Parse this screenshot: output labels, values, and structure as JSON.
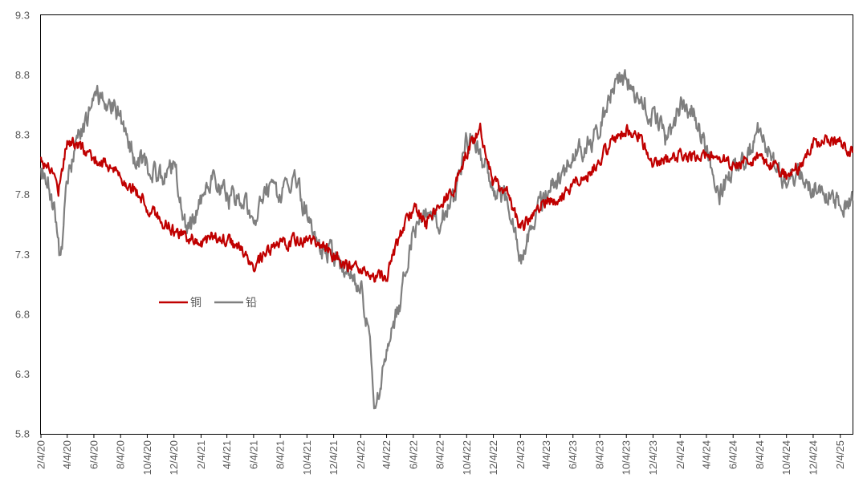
{
  "chart_data": {
    "type": "line",
    "title": "",
    "xlabel": "",
    "ylabel": "",
    "ylim": [
      5.8,
      9.3
    ],
    "yticks": [
      "5.8",
      "6.3",
      "6.8",
      "7.3",
      "7.8",
      "8.3",
      "8.8",
      "9.3"
    ],
    "xlim": [
      "2020-02-04",
      "2025-03-04"
    ],
    "xticks": [
      {
        "date": "2020-02-04",
        "label": "2/4/20"
      },
      {
        "date": "2020-04-04",
        "label": "4/4/20"
      },
      {
        "date": "2020-06-04",
        "label": "6/4/20"
      },
      {
        "date": "2020-08-04",
        "label": "8/4/20"
      },
      {
        "date": "2020-10-04",
        "label": "10/4/20"
      },
      {
        "date": "2020-12-04",
        "label": "12/4/20"
      },
      {
        "date": "2021-02-04",
        "label": "2/4/21"
      },
      {
        "date": "2021-04-04",
        "label": "4/4/21"
      },
      {
        "date": "2021-06-04",
        "label": "6/4/21"
      },
      {
        "date": "2021-08-04",
        "label": "8/4/21"
      },
      {
        "date": "2021-10-04",
        "label": "10/4/21"
      },
      {
        "date": "2021-12-04",
        "label": "12/4/21"
      },
      {
        "date": "2022-02-04",
        "label": "2/4/22"
      },
      {
        "date": "2022-04-04",
        "label": "4/4/22"
      },
      {
        "date": "2022-06-04",
        "label": "6/4/22"
      },
      {
        "date": "2022-08-04",
        "label": "8/4/22"
      },
      {
        "date": "2022-10-04",
        "label": "10/4/22"
      },
      {
        "date": "2022-12-04",
        "label": "12/4/22"
      },
      {
        "date": "2023-02-04",
        "label": "2/4/23"
      },
      {
        "date": "2023-04-04",
        "label": "4/4/23"
      },
      {
        "date": "2023-06-04",
        "label": "6/4/23"
      },
      {
        "date": "2023-08-04",
        "label": "8/4/23"
      },
      {
        "date": "2023-10-04",
        "label": "10/4/23"
      },
      {
        "date": "2023-12-04",
        "label": "12/4/23"
      },
      {
        "date": "2024-02-04",
        "label": "2/4/24"
      },
      {
        "date": "2024-04-04",
        "label": "4/4/24"
      },
      {
        "date": "2024-06-04",
        "label": "6/4/24"
      },
      {
        "date": "2024-08-04",
        "label": "8/4/24"
      },
      {
        "date": "2024-10-04",
        "label": "10/4/24"
      },
      {
        "date": "2024-12-04",
        "label": "12/4/24"
      },
      {
        "date": "2025-02-04",
        "label": "2/4/25"
      }
    ],
    "grid": false,
    "legend_position": "left-center inside plot",
    "series": [
      {
        "name": "铜",
        "color": "#C00000",
        "points": [
          [
            "2020-02-04",
            8.1
          ],
          [
            "2020-03-01",
            8.0
          ],
          [
            "2020-03-15",
            7.85
          ],
          [
            "2020-04-04",
            8.25
          ],
          [
            "2020-05-04",
            8.2
          ],
          [
            "2020-06-04",
            8.1
          ],
          [
            "2020-07-04",
            8.05
          ],
          [
            "2020-08-04",
            7.95
          ],
          [
            "2020-09-04",
            7.85
          ],
          [
            "2020-10-04",
            7.7
          ],
          [
            "2020-11-04",
            7.6
          ],
          [
            "2020-12-04",
            7.5
          ],
          [
            "2021-01-04",
            7.45
          ],
          [
            "2021-02-04",
            7.4
          ],
          [
            "2021-03-04",
            7.45
          ],
          [
            "2021-04-04",
            7.42
          ],
          [
            "2021-05-04",
            7.35
          ],
          [
            "2021-06-04",
            7.18
          ],
          [
            "2021-07-04",
            7.3
          ],
          [
            "2021-08-04",
            7.38
          ],
          [
            "2021-09-04",
            7.42
          ],
          [
            "2021-10-04",
            7.42
          ],
          [
            "2021-11-04",
            7.38
          ],
          [
            "2021-12-04",
            7.28
          ],
          [
            "2022-01-04",
            7.2
          ],
          [
            "2022-02-04",
            7.15
          ],
          [
            "2022-03-04",
            7.12
          ],
          [
            "2022-04-04",
            7.1
          ],
          [
            "2022-05-04",
            7.45
          ],
          [
            "2022-06-04",
            7.7
          ],
          [
            "2022-07-04",
            7.55
          ],
          [
            "2022-08-04",
            7.7
          ],
          [
            "2022-09-04",
            7.85
          ],
          [
            "2022-10-04",
            8.15
          ],
          [
            "2022-11-04",
            8.35
          ],
          [
            "2022-12-04",
            7.9
          ],
          [
            "2023-01-04",
            7.8
          ],
          [
            "2023-02-04",
            7.5
          ],
          [
            "2023-03-04",
            7.65
          ],
          [
            "2023-04-04",
            7.75
          ],
          [
            "2023-05-04",
            7.75
          ],
          [
            "2023-06-04",
            7.9
          ],
          [
            "2023-07-04",
            7.95
          ],
          [
            "2023-08-04",
            8.1
          ],
          [
            "2023-09-04",
            8.25
          ],
          [
            "2023-10-04",
            8.35
          ],
          [
            "2023-11-04",
            8.3
          ],
          [
            "2023-12-04",
            8.05
          ],
          [
            "2024-01-04",
            8.1
          ],
          [
            "2024-02-04",
            8.12
          ],
          [
            "2024-03-04",
            8.12
          ],
          [
            "2024-04-04",
            8.15
          ],
          [
            "2024-05-04",
            8.1
          ],
          [
            "2024-06-04",
            8.05
          ],
          [
            "2024-07-04",
            8.1
          ],
          [
            "2024-08-04",
            8.1
          ],
          [
            "2024-09-04",
            8.05
          ],
          [
            "2024-10-04",
            7.95
          ],
          [
            "2024-11-04",
            8.05
          ],
          [
            "2024-12-04",
            8.22
          ],
          [
            "2025-01-04",
            8.25
          ],
          [
            "2025-02-04",
            8.22
          ],
          [
            "2025-03-04",
            8.15
          ]
        ]
      },
      {
        "name": "铅",
        "color": "#7F7F7F",
        "points": [
          [
            "2020-02-04",
            8.0
          ],
          [
            "2020-02-20",
            7.9
          ],
          [
            "2020-03-10",
            7.6
          ],
          [
            "2020-03-20",
            7.2
          ],
          [
            "2020-04-04",
            7.9
          ],
          [
            "2020-05-04",
            8.3
          ],
          [
            "2020-06-04",
            8.6
          ],
          [
            "2020-07-04",
            8.6
          ],
          [
            "2020-08-04",
            8.45
          ],
          [
            "2020-09-04",
            8.1
          ],
          [
            "2020-10-04",
            8.05
          ],
          [
            "2020-11-04",
            7.95
          ],
          [
            "2020-12-04",
            8.05
          ],
          [
            "2021-01-04",
            7.45
          ],
          [
            "2021-02-04",
            7.75
          ],
          [
            "2021-03-04",
            8.0
          ],
          [
            "2021-04-04",
            7.75
          ],
          [
            "2021-05-04",
            7.8
          ],
          [
            "2021-06-04",
            7.6
          ],
          [
            "2021-07-04",
            7.85
          ],
          [
            "2021-08-04",
            7.75
          ],
          [
            "2021-09-04",
            7.95
          ],
          [
            "2021-10-04",
            7.65
          ],
          [
            "2021-11-04",
            7.35
          ],
          [
            "2021-12-04",
            7.3
          ],
          [
            "2022-01-04",
            7.15
          ],
          [
            "2022-02-04",
            7.05
          ],
          [
            "2022-02-25",
            6.6
          ],
          [
            "2022-03-08",
            6.0
          ],
          [
            "2022-04-04",
            6.5
          ],
          [
            "2022-05-04",
            6.9
          ],
          [
            "2022-06-04",
            7.5
          ],
          [
            "2022-07-04",
            7.65
          ],
          [
            "2022-08-04",
            7.6
          ],
          [
            "2022-09-04",
            7.75
          ],
          [
            "2022-10-04",
            8.3
          ],
          [
            "2022-11-04",
            8.15
          ],
          [
            "2022-12-04",
            7.85
          ],
          [
            "2023-01-04",
            7.75
          ],
          [
            "2023-02-04",
            7.25
          ],
          [
            "2023-03-04",
            7.55
          ],
          [
            "2023-04-04",
            7.8
          ],
          [
            "2023-05-04",
            7.95
          ],
          [
            "2023-06-04",
            8.1
          ],
          [
            "2023-07-04",
            8.2
          ],
          [
            "2023-08-04",
            8.35
          ],
          [
            "2023-09-04",
            8.7
          ],
          [
            "2023-10-04",
            8.75
          ],
          [
            "2023-11-04",
            8.6
          ],
          [
            "2023-12-04",
            8.45
          ],
          [
            "2024-01-04",
            8.25
          ],
          [
            "2024-02-04",
            8.55
          ],
          [
            "2024-03-04",
            8.5
          ],
          [
            "2024-04-04",
            8.15
          ],
          [
            "2024-05-04",
            7.8
          ],
          [
            "2024-06-04",
            8.0
          ],
          [
            "2024-07-04",
            8.1
          ],
          [
            "2024-08-04",
            8.35
          ],
          [
            "2024-09-04",
            8.05
          ],
          [
            "2024-10-04",
            7.9
          ],
          [
            "2024-11-04",
            8.0
          ],
          [
            "2024-12-04",
            7.85
          ],
          [
            "2025-01-04",
            7.8
          ],
          [
            "2025-02-04",
            7.75
          ],
          [
            "2025-03-04",
            7.75
          ]
        ]
      }
    ]
  }
}
